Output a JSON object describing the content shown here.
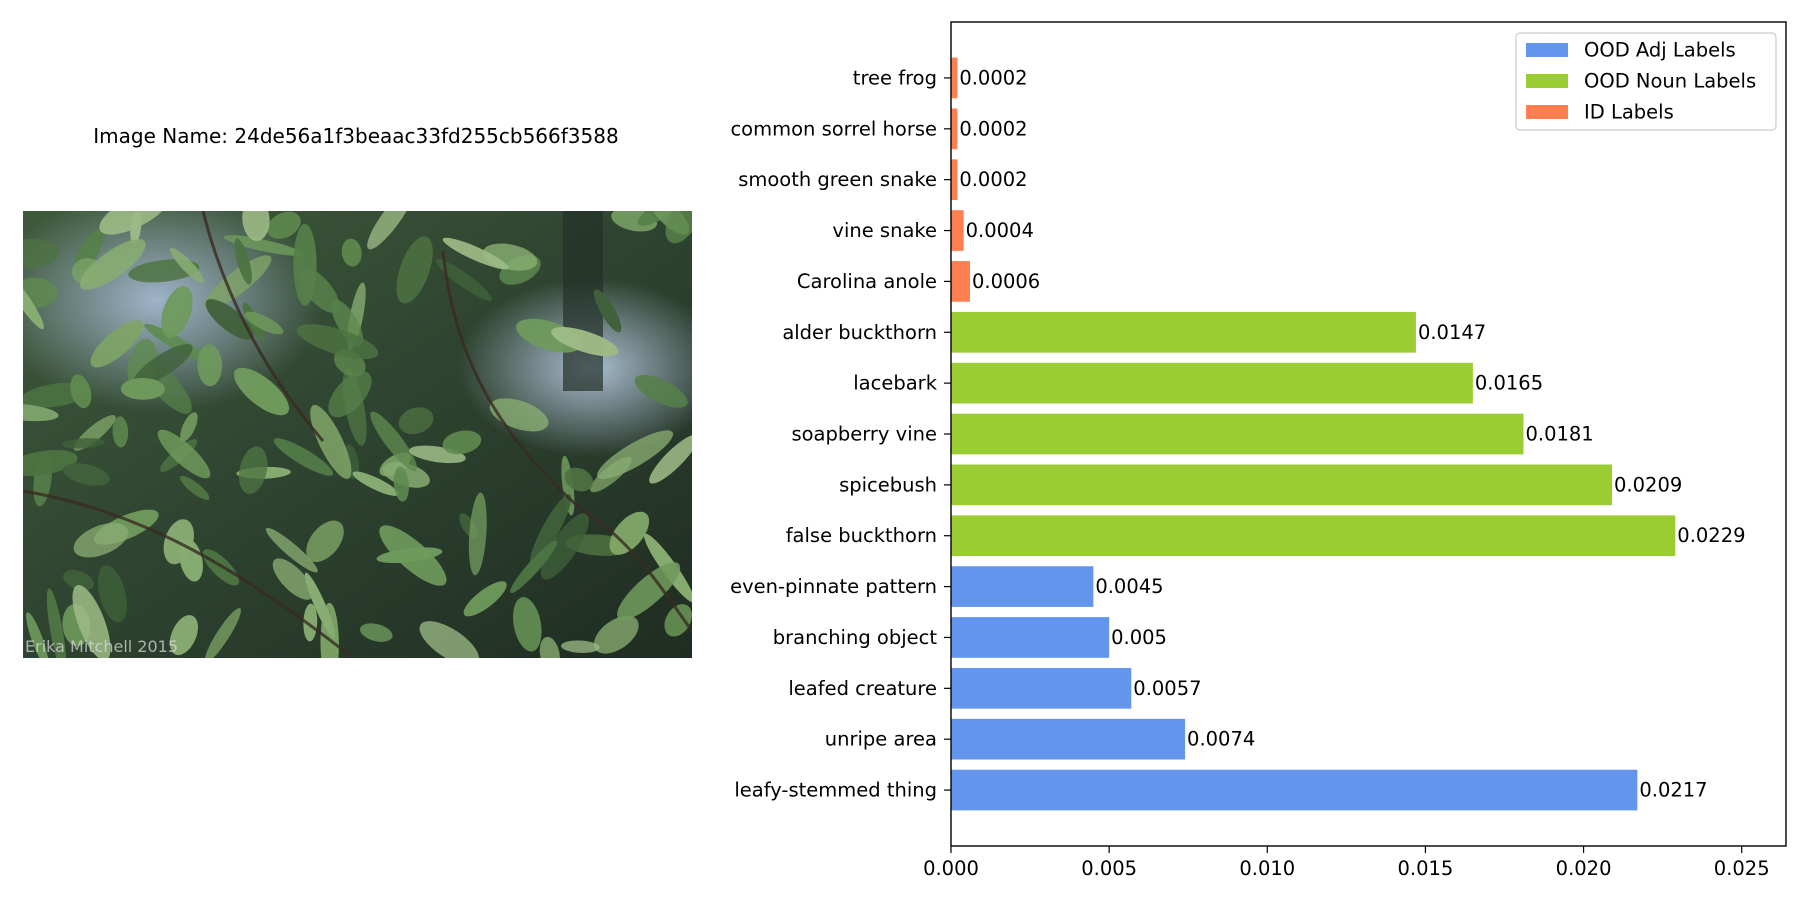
{
  "image_name_label": "Image Name: 24de56a1f3beaac33fd255cb566f3588",
  "photo": {
    "watermark": "Erika Mitchell 2015"
  },
  "chart_data": {
    "type": "bar",
    "orientation": "horizontal",
    "title": "",
    "xlabel": "",
    "ylabel": "",
    "xlim": [
      0,
      0.0264
    ],
    "xticks": [
      "0.000",
      "0.005",
      "0.010",
      "0.015",
      "0.020",
      "0.025"
    ],
    "legend_position": "top-right",
    "bars": [
      {
        "label": "tree frog",
        "value": 0.0002,
        "value_label": "0.0002",
        "series": "ID Labels"
      },
      {
        "label": "common sorrel horse",
        "value": 0.0002,
        "value_label": "0.0002",
        "series": "ID Labels"
      },
      {
        "label": "smooth green snake",
        "value": 0.0002,
        "value_label": "0.0002",
        "series": "ID Labels"
      },
      {
        "label": "vine snake",
        "value": 0.0004,
        "value_label": "0.0004",
        "series": "ID Labels"
      },
      {
        "label": "Carolina anole",
        "value": 0.0006,
        "value_label": "0.0006",
        "series": "ID Labels"
      },
      {
        "label": "alder buckthorn",
        "value": 0.0147,
        "value_label": "0.0147",
        "series": "OOD Noun Labels"
      },
      {
        "label": "lacebark",
        "value": 0.0165,
        "value_label": "0.0165",
        "series": "OOD Noun Labels"
      },
      {
        "label": "soapberry vine",
        "value": 0.0181,
        "value_label": "0.0181",
        "series": "OOD Noun Labels"
      },
      {
        "label": "spicebush",
        "value": 0.0209,
        "value_label": "0.0209",
        "series": "OOD Noun Labels"
      },
      {
        "label": "false buckthorn",
        "value": 0.0229,
        "value_label": "0.0229",
        "series": "OOD Noun Labels"
      },
      {
        "label": "even-pinnate pattern",
        "value": 0.0045,
        "value_label": "0.0045",
        "series": "OOD Adj Labels"
      },
      {
        "label": "branching object",
        "value": 0.005,
        "value_label": "0.005",
        "series": "OOD Adj Labels"
      },
      {
        "label": "leafed creature",
        "value": 0.0057,
        "value_label": "0.0057",
        "series": "OOD Adj Labels"
      },
      {
        "label": "unripe area",
        "value": 0.0074,
        "value_label": "0.0074",
        "series": "OOD Adj Labels"
      },
      {
        "label": "leafy-stemmed thing",
        "value": 0.0217,
        "value_label": "0.0217",
        "series": "OOD Adj Labels"
      }
    ],
    "series": [
      {
        "name": "OOD Adj Labels",
        "color": "#6495ED"
      },
      {
        "name": "OOD Noun Labels",
        "color": "#9ACD32"
      },
      {
        "name": "ID Labels",
        "color": "#FF7F50"
      }
    ]
  }
}
